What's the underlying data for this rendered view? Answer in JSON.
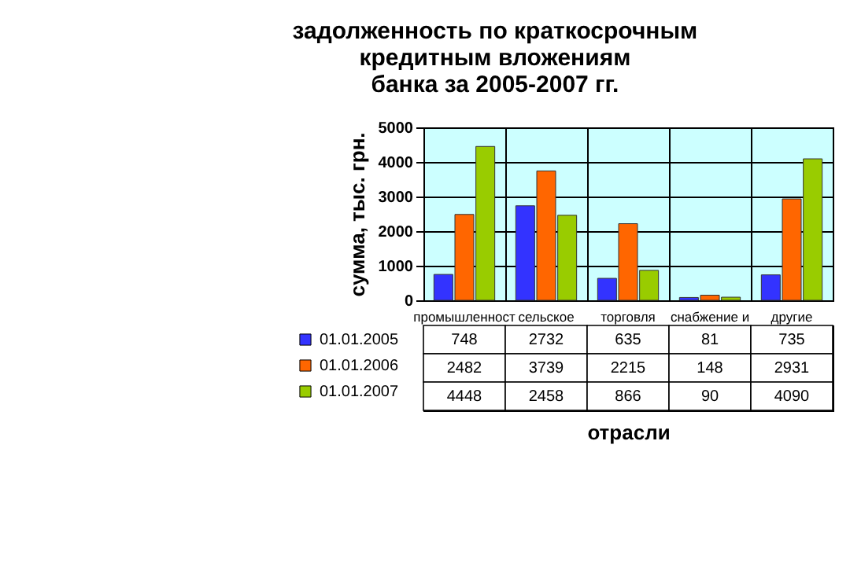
{
  "chart_data": {
    "type": "bar",
    "title": "задолженность по краткосрочным\nкредитным вложениям\nбанка за 2005-2007 гг.",
    "xlabel": "отрасли",
    "ylabel": "сумма, тыс. грн.",
    "categories": [
      "промышленност",
      "сельское",
      "торговля",
      "снабжение и",
      "другие"
    ],
    "series": [
      {
        "name": "01.01.2005",
        "color": "#3333ff",
        "values": [
          748,
          2732,
          635,
          81,
          735
        ]
      },
      {
        "name": "01.01.2006",
        "color": "#ff6600",
        "values": [
          2482,
          3739,
          2215,
          148,
          2931
        ]
      },
      {
        "name": "01.01.2007",
        "color": "#99cc00",
        "values": [
          4448,
          2458,
          866,
          90,
          4090
        ]
      }
    ],
    "ylim": [
      0,
      5000
    ],
    "yticks": [
      0,
      1000,
      2000,
      3000,
      4000,
      5000
    ],
    "grid": true,
    "legend": "bottom left",
    "data_labels": true
  }
}
